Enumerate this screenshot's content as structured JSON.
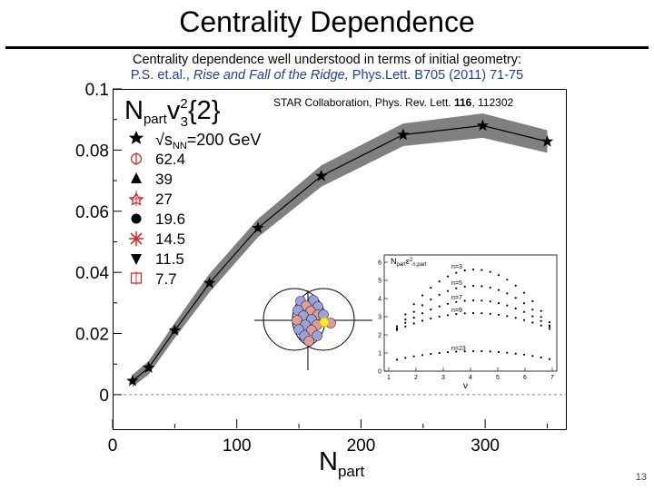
{
  "slide": {
    "title": "Centrality Dependence",
    "subtitle_line1": "Centrality dependence well understood in terms of initial geometry:",
    "subtitle_line2_authors": "P.S. et.al., ",
    "subtitle_line2_title": "Rise and Fall of the Ridge,",
    "subtitle_line2_journal": " Phys.Lett. B705 (2011) 71-75",
    "page_number": "13"
  },
  "chart_data": {
    "type": "line",
    "reference": "STAR Collaboration, Phys. Rev. Lett. ",
    "reference_volume": "116",
    "reference_page": ", 112302",
    "ylabel_main": "N",
    "ylabel_sub": "part",
    "ylabel_v": "v",
    "ylabel_v_sup": "2",
    "ylabel_v_sub": "3",
    "ylabel_tail": "{2}",
    "xlabel_main": "N",
    "xlabel_sub": "part",
    "xlim": [
      0,
      365
    ],
    "ylim": [
      -0.011,
      0.1
    ],
    "x_ticks": [
      "0",
      "100",
      "200",
      "300"
    ],
    "y_ticks": [
      "0",
      "0.02",
      "0.04",
      "0.06",
      "0.08",
      "0.1"
    ],
    "legend_header": "√s",
    "legend_header_sub": "NN",
    "legend_header_tail": "=200 GeV",
    "legend": [
      "62.4",
      "39",
      "27",
      "19.6",
      "14.5",
      "11.5",
      "7.7"
    ],
    "band_color": "#808080",
    "series": [
      {
        "x": [
          16,
          29,
          50,
          78,
          117,
          168,
          234,
          298,
          350
        ],
        "y": [
          0.0045,
          0.0088,
          0.021,
          0.0365,
          0.0545,
          0.0715,
          0.085,
          0.088,
          0.0828
        ],
        "err": [
          0.002,
          0.0022,
          0.0025,
          0.003,
          0.003,
          0.0035,
          0.0037,
          0.004,
          0.0037
        ]
      }
    ],
    "inset_plot": {
      "ylabel": "N",
      "ylabel_rest": "ε",
      "xlabel": "ν",
      "x_ticks": [
        "0",
        "1",
        "2",
        "3",
        "4",
        "5",
        "6",
        "7"
      ],
      "y_ticks": [
        "0",
        "1",
        "2",
        "3",
        "4",
        "5",
        "6"
      ],
      "curve_labels": [
        "n=3",
        "n=5",
        "n=7",
        "n=9",
        "n=23"
      ]
    }
  }
}
